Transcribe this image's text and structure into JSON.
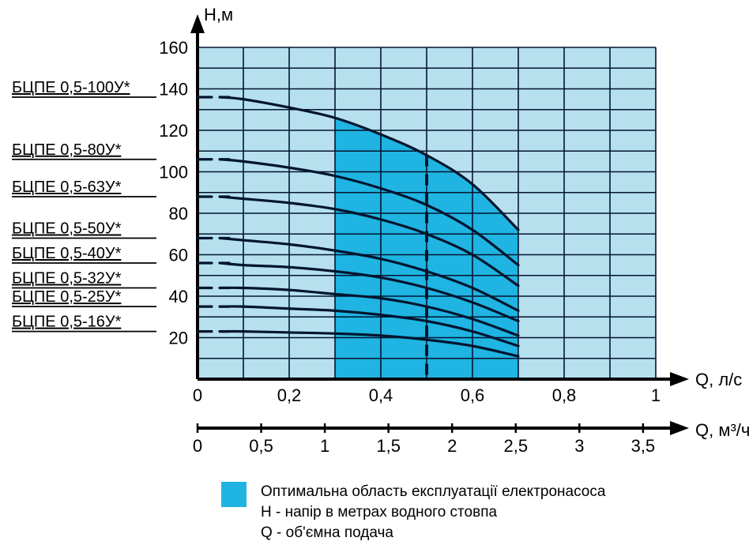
{
  "chart": {
    "type": "line",
    "background_color": "#ffffff",
    "plot_bg": "#b7e0ee",
    "optimal_fill": "#1fb4e2",
    "grid_color": "#02152f",
    "curve_color": "#02152f",
    "curve_width": 3.2,
    "axis_color": "#000000",
    "axis_width": 4,
    "text_color": "#000000",
    "label_fontsize": 22,
    "tick_fontsize": 22,
    "y_title": "Н,м",
    "x1_title": "Q, л/с",
    "x2_title": "Q, м³/ч",
    "x1_range": [
      0,
      1.0
    ],
    "y_range": [
      0,
      160
    ],
    "x1_ticks": [
      0,
      0.2,
      0.4,
      0.6,
      0.8,
      1.0
    ],
    "x1_tick_labels": [
      "0",
      "0,2",
      "0,4",
      "0,6",
      "0,8",
      "1"
    ],
    "y_ticks": [
      20,
      40,
      60,
      80,
      100,
      120,
      140,
      160
    ],
    "x2_ticks": [
      0,
      0.5,
      1,
      1.5,
      2,
      2.5,
      3,
      3.5
    ],
    "x2_tick_labels": [
      "0",
      "0,5",
      "1",
      "1,5",
      "2",
      "2,5",
      "3",
      "3,5"
    ],
    "x_grid_at": [
      0,
      0.1,
      0.2,
      0.3,
      0.4,
      0.5,
      0.6,
      0.7,
      0.8,
      0.9,
      1.0
    ],
    "y_grid_at": [
      0,
      10,
      20,
      30,
      40,
      50,
      60,
      70,
      80,
      90,
      100,
      110,
      120,
      130,
      140,
      150,
      160
    ],
    "optimal_x": [
      0.3,
      0.7
    ],
    "optimal_top_curve_index": 0,
    "nominal_x": 0.5,
    "series": [
      {
        "label": "БЦПЕ 0,5-100У*",
        "label_y": 136,
        "pts": [
          [
            0.05,
            136
          ],
          [
            0.1,
            135
          ],
          [
            0.2,
            131
          ],
          [
            0.3,
            126
          ],
          [
            0.4,
            118
          ],
          [
            0.5,
            108
          ],
          [
            0.6,
            94
          ],
          [
            0.7,
            72
          ]
        ]
      },
      {
        "label": "БЦПЕ 0,5-80У*",
        "label_y": 106,
        "pts": [
          [
            0.05,
            106
          ],
          [
            0.1,
            105
          ],
          [
            0.2,
            102
          ],
          [
            0.3,
            98
          ],
          [
            0.4,
            92
          ],
          [
            0.5,
            84
          ],
          [
            0.6,
            72
          ],
          [
            0.7,
            55
          ]
        ]
      },
      {
        "label": "БЦПЕ 0,5-63У*",
        "label_y": 88,
        "pts": [
          [
            0.05,
            88
          ],
          [
            0.1,
            87
          ],
          [
            0.2,
            85
          ],
          [
            0.3,
            82
          ],
          [
            0.4,
            77
          ],
          [
            0.5,
            70
          ],
          [
            0.6,
            60
          ],
          [
            0.7,
            45
          ]
        ]
      },
      {
        "label": "БЦПЕ 0,5-50У*",
        "label_y": 68,
        "pts": [
          [
            0.05,
            68
          ],
          [
            0.1,
            67
          ],
          [
            0.2,
            65
          ],
          [
            0.3,
            62
          ],
          [
            0.4,
            58
          ],
          [
            0.5,
            52
          ],
          [
            0.6,
            44
          ],
          [
            0.7,
            33
          ]
        ]
      },
      {
        "label": "БЦПЕ 0,5-40У*",
        "label_y": 56,
        "pts": [
          [
            0.05,
            56
          ],
          [
            0.1,
            55
          ],
          [
            0.2,
            54
          ],
          [
            0.3,
            52
          ],
          [
            0.4,
            49
          ],
          [
            0.5,
            44
          ],
          [
            0.6,
            37
          ],
          [
            0.7,
            28
          ]
        ]
      },
      {
        "label": "БЦПЕ 0,5-32У*",
        "label_y": 44,
        "pts": [
          [
            0.05,
            44
          ],
          [
            0.1,
            44
          ],
          [
            0.2,
            43
          ],
          [
            0.3,
            41
          ],
          [
            0.4,
            39
          ],
          [
            0.5,
            35
          ],
          [
            0.6,
            29
          ],
          [
            0.7,
            21
          ]
        ]
      },
      {
        "label": "БЦПЕ 0,5-25У*",
        "label_y": 35,
        "pts": [
          [
            0.05,
            35
          ],
          [
            0.1,
            35
          ],
          [
            0.2,
            34
          ],
          [
            0.3,
            33
          ],
          [
            0.4,
            31
          ],
          [
            0.5,
            28
          ],
          [
            0.6,
            23
          ],
          [
            0.7,
            16
          ]
        ]
      },
      {
        "label": "БЦПЕ 0,5-16У*",
        "label_y": 23,
        "pts": [
          [
            0.05,
            23
          ],
          [
            0.1,
            23
          ],
          [
            0.2,
            22.5
          ],
          [
            0.3,
            22
          ],
          [
            0.4,
            21
          ],
          [
            0.5,
            19
          ],
          [
            0.6,
            16
          ],
          [
            0.7,
            11
          ]
        ]
      }
    ]
  },
  "legend": {
    "swatch_color": "#1fb4e2",
    "lines": [
      "Оптимальна область експлуатації електронасоса",
      "Н - напір в метрах водного стовпа",
      "Q - об'ємна подача"
    ]
  }
}
